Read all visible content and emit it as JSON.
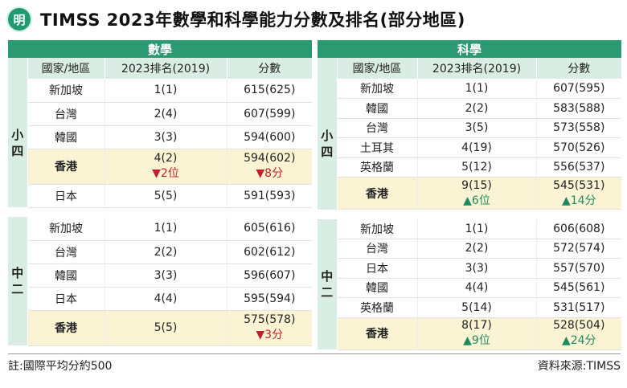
{
  "title": "TIMSS 2023年數學和科學能力分數及排名(部分地區)",
  "logo_text": "明",
  "headers": {
    "country": "國家/地區",
    "rank": "2023排名(2019)",
    "score": "分數"
  },
  "math": {
    "label": "數學",
    "p4": {
      "grade": "小四",
      "rows": [
        {
          "country": "新加坡",
          "rank": "1(1)",
          "score": "615(625)"
        },
        {
          "country": "台灣",
          "rank": "2(4)",
          "score": "607(599)"
        },
        {
          "country": "韓國",
          "rank": "3(3)",
          "score": "594(600)"
        },
        {
          "country": "香港",
          "rank": "4(2)",
          "score": "594(602)",
          "rank_change": "▼2位",
          "score_change": "▼8分",
          "hk": true
        },
        {
          "country": "日本",
          "rank": "5(5)",
          "score": "591(593)"
        }
      ]
    },
    "s2": {
      "grade": "中二",
      "rows": [
        {
          "country": "新加坡",
          "rank": "1(1)",
          "score": "605(616)"
        },
        {
          "country": "台灣",
          "rank": "2(2)",
          "score": "602(612)"
        },
        {
          "country": "韓國",
          "rank": "3(3)",
          "score": "596(607)"
        },
        {
          "country": "日本",
          "rank": "4(4)",
          "score": "595(594)"
        },
        {
          "country": "香港",
          "rank": "5(5)",
          "score": "575(578)",
          "score_change": "▼3分",
          "hk": true
        }
      ]
    }
  },
  "science": {
    "label": "科學",
    "p4": {
      "grade": "小四",
      "rows": [
        {
          "country": "新加坡",
          "rank": "1(1)",
          "score": "607(595)"
        },
        {
          "country": "韓國",
          "rank": "2(2)",
          "score": "583(588)"
        },
        {
          "country": "台灣",
          "rank": "3(5)",
          "score": "573(558)"
        },
        {
          "country": "土耳其",
          "rank": "4(19)",
          "score": "570(526)"
        },
        {
          "country": "英格蘭",
          "rank": "5(12)",
          "score": "556(537)"
        },
        {
          "country": "香港",
          "rank": "9(15)",
          "score": "545(531)",
          "rank_change": "▲6位",
          "score_change": "▲14分",
          "hk": true
        }
      ]
    },
    "s2": {
      "grade": "中二",
      "rows": [
        {
          "country": "新加坡",
          "rank": "1(1)",
          "score": "606(608)"
        },
        {
          "country": "台灣",
          "rank": "2(2)",
          "score": "572(574)"
        },
        {
          "country": "日本",
          "rank": "3(3)",
          "score": "557(570)"
        },
        {
          "country": "韓國",
          "rank": "4(4)",
          "score": "545(561)"
        },
        {
          "country": "英格蘭",
          "rank": "5(14)",
          "score": "531(517)"
        },
        {
          "country": "香港",
          "rank": "8(17)",
          "score": "528(504)",
          "rank_change": "▲9位",
          "score_change": "▲24分",
          "hk": true
        }
      ]
    }
  },
  "footer": {
    "note": "註:國際平均分約500",
    "source": "資料來源:TIMSS"
  }
}
